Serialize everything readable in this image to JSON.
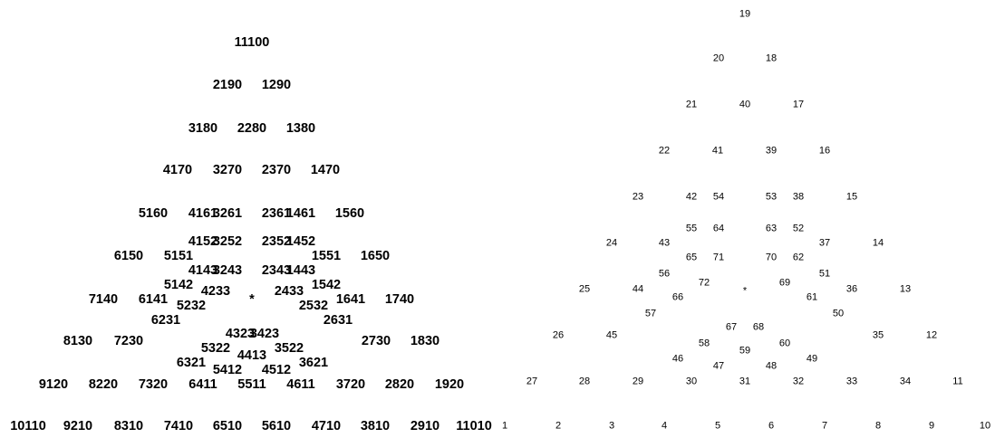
{
  "left_labels": [
    "11100",
    "2190",
    "1290",
    "3180",
    "2280",
    "1380",
    "4170",
    "3270",
    "2370",
    "1470",
    "5160",
    "4161",
    "3261",
    "2361",
    "1461",
    "1560",
    "4152",
    "3252",
    "2352",
    "1452",
    "6150",
    "5151",
    "1551",
    "1650",
    "4143",
    "3243",
    "2343",
    "1443",
    "5142",
    "4233",
    "2433",
    "1542",
    "7140",
    "6141",
    "*",
    "1641",
    "1740",
    "5232",
    "2532",
    "6231",
    "2631",
    "4323",
    "3423",
    "8130",
    "7230",
    "5322",
    "3522",
    "2730",
    "1830",
    "4413",
    "6321",
    "3621",
    "5412",
    "4512",
    "9120",
    "8220",
    "7320",
    "6411",
    "5511",
    "4611",
    "3720",
    "2820",
    "1920",
    "10110",
    "9210",
    "8310",
    "7410",
    "6510",
    "5610",
    "4710",
    "3810",
    "2910",
    "11010"
  ],
  "right_labels": [
    "19",
    "20",
    "18",
    "21",
    "40",
    "17",
    "22",
    "41",
    "39",
    "16",
    "23",
    "42",
    "54",
    "53",
    "38",
    "15",
    "55",
    "64",
    "63",
    "52",
    "24",
    "43",
    "37",
    "14",
    "65",
    "71",
    "70",
    "62",
    "56",
    "51",
    "72",
    "69",
    "25",
    "44",
    "*",
    "36",
    "13",
    "66",
    "61",
    "57",
    "50",
    "67",
    "68",
    "26",
    "45",
    "35",
    "12",
    "58",
    "60",
    "59",
    "46",
    "49",
    "47",
    "48",
    "27",
    "28",
    "29",
    "30",
    "31",
    "32",
    "33",
    "34",
    "11",
    "1",
    "2",
    "3",
    "4",
    "5",
    "6",
    "7",
    "8",
    "9",
    "10"
  ]
}
